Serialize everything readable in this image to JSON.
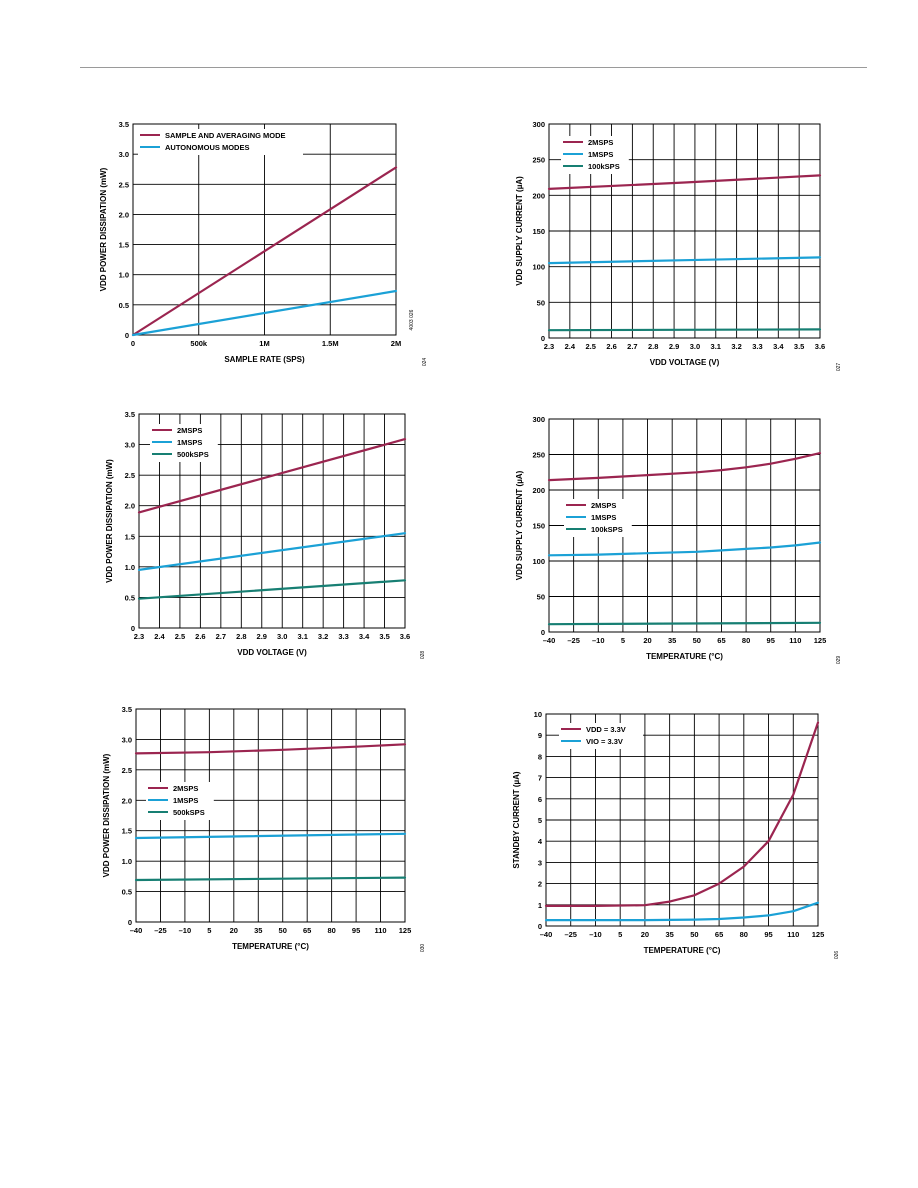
{
  "colors": {
    "maroon": "#9b2550",
    "cyan": "#1ba1d6",
    "teal": "#177f73",
    "grid": "#000000"
  },
  "chart_data": [
    {
      "type": "line",
      "xlabel": "SAMPLE RATE (SPS)",
      "ylabel": "VDD POWER DISSIPATION (mW)",
      "xticks": [
        0,
        500000,
        1000000,
        1500000,
        2000000
      ],
      "xticklabels": [
        "0",
        "500k",
        "1M",
        "1.5M",
        "2M"
      ],
      "yticks": [
        0,
        0.5,
        1.0,
        1.5,
        2.0,
        2.5,
        3.0,
        3.5
      ],
      "yticklabels": [
        "0",
        "0.5",
        "1.0",
        "1.5",
        "2.0",
        "2.5",
        "3.0",
        "3.5"
      ],
      "xlim": [
        0,
        2000000
      ],
      "ylim": [
        0,
        3.5
      ],
      "legend": "top-left",
      "series": [
        {
          "name": "SAMPLE AND AVERAGING MODE",
          "color": "#9b2550",
          "x": [
            0,
            2000000
          ],
          "y": [
            0,
            2.78
          ]
        },
        {
          "name": "AUTONOMOUS MODES",
          "color": "#1ba1d6",
          "x": [
            0,
            2000000
          ],
          "y": [
            0,
            0.73
          ]
        }
      ],
      "code": "024",
      "annotation": "4003 026"
    },
    {
      "type": "line",
      "xlabel": "VDD VOLTAGE (V)",
      "ylabel": "VDD SUPPLY CURRENT (µA)",
      "xticks": [
        2.3,
        2.4,
        2.5,
        2.6,
        2.7,
        2.8,
        2.9,
        3.0,
        3.1,
        3.2,
        3.3,
        3.4,
        3.5,
        3.6
      ],
      "xticklabels": [
        "2.3",
        "2.4",
        "2.5",
        "2.6",
        "2.7",
        "2.8",
        "2.9",
        "3.0",
        "3.1",
        "3.2",
        "3.3",
        "3.4",
        "3.5",
        "3.6"
      ],
      "yticks": [
        0,
        50,
        100,
        150,
        200,
        250,
        300
      ],
      "yticklabels": [
        "0",
        "50",
        "100",
        "150",
        "200",
        "250",
        "300"
      ],
      "xlim": [
        2.3,
        3.6
      ],
      "ylim": [
        0,
        300
      ],
      "legend": "top-left",
      "series": [
        {
          "name": "2MSPS",
          "color": "#9b2550",
          "x": [
            2.3,
            2.95,
            3.6
          ],
          "y": [
            209,
            218,
            228
          ]
        },
        {
          "name": "1MSPS",
          "color": "#1ba1d6",
          "x": [
            2.3,
            2.95,
            3.6
          ],
          "y": [
            105,
            109,
            113
          ]
        },
        {
          "name": "100kSPS",
          "color": "#177f73",
          "x": [
            2.3,
            3.6
          ],
          "y": [
            11,
            12
          ]
        }
      ],
      "code": "027"
    },
    {
      "type": "line",
      "xlabel": "VDD VOLTAGE (V)",
      "ylabel": "VDD POWER DISSIPATION (mW)",
      "xticks": [
        2.3,
        2.4,
        2.5,
        2.6,
        2.7,
        2.8,
        2.9,
        3.0,
        3.1,
        3.2,
        3.3,
        3.4,
        3.5,
        3.6
      ],
      "xticklabels": [
        "2.3",
        "2.4",
        "2.5",
        "2.6",
        "2.7",
        "2.8",
        "2.9",
        "3.0",
        "3.1",
        "3.2",
        "3.3",
        "3.4",
        "3.5",
        "3.6"
      ],
      "yticks": [
        0,
        0.5,
        1.0,
        1.5,
        2.0,
        2.5,
        3.0,
        3.5
      ],
      "yticklabels": [
        "0",
        "0.5",
        "1.0",
        "1.5",
        "2.0",
        "2.5",
        "3.0",
        "3.5"
      ],
      "xlim": [
        2.3,
        3.6
      ],
      "ylim": [
        0,
        3.5
      ],
      "legend": "top-left",
      "series": [
        {
          "name": "2MSPS",
          "color": "#9b2550",
          "x": [
            2.3,
            3.6
          ],
          "y": [
            1.89,
            3.09
          ]
        },
        {
          "name": "1MSPS",
          "color": "#1ba1d6",
          "x": [
            2.3,
            3.6
          ],
          "y": [
            0.95,
            1.55
          ]
        },
        {
          "name": "500kSPS",
          "color": "#177f73",
          "x": [
            2.3,
            3.6
          ],
          "y": [
            0.48,
            0.78
          ]
        }
      ],
      "code": "028"
    },
    {
      "type": "line",
      "xlabel": "TEMPERATURE (°C)",
      "ylabel": "VDD SUPPLY CURRENT (µA)",
      "xticks": [
        -40,
        -25,
        -10,
        5,
        20,
        35,
        50,
        65,
        80,
        95,
        110,
        125
      ],
      "xticklabels": [
        "–40",
        "–25",
        "–10",
        "5",
        "20",
        "35",
        "50",
        "65",
        "80",
        "95",
        "110",
        "125"
      ],
      "yticks": [
        0,
        50,
        100,
        150,
        200,
        250,
        300
      ],
      "yticklabels": [
        "0",
        "50",
        "100",
        "150",
        "200",
        "250",
        "300"
      ],
      "xlim": [
        -40,
        125
      ],
      "ylim": [
        0,
        300
      ],
      "legend": "middle-left",
      "series": [
        {
          "name": "2MSPS",
          "color": "#9b2550",
          "x": [
            -40,
            -10,
            20,
            50,
            65,
            80,
            95,
            110,
            125
          ],
          "y": [
            214,
            217,
            221,
            225,
            228,
            232,
            237,
            244,
            252
          ]
        },
        {
          "name": "1MSPS",
          "color": "#1ba1d6",
          "x": [
            -40,
            -10,
            20,
            50,
            65,
            80,
            95,
            110,
            125
          ],
          "y": [
            108,
            109,
            111,
            113,
            115,
            117,
            119,
            122,
            126
          ]
        },
        {
          "name": "100kSPS",
          "color": "#177f73",
          "x": [
            -40,
            125
          ],
          "y": [
            11,
            13
          ]
        }
      ],
      "code": "029"
    },
    {
      "type": "line",
      "xlabel": "TEMPERATURE (°C)",
      "ylabel": "VDD POWER DISSIPATION (mW)",
      "xticks": [
        -40,
        -25,
        -10,
        5,
        20,
        35,
        50,
        65,
        80,
        95,
        110,
        125
      ],
      "xticklabels": [
        "–40",
        "–25",
        "–10",
        "5",
        "20",
        "35",
        "50",
        "65",
        "80",
        "95",
        "110",
        "125"
      ],
      "yticks": [
        0,
        0.5,
        1.0,
        1.5,
        2.0,
        2.5,
        3.0,
        3.5
      ],
      "yticklabels": [
        "0",
        "0.5",
        "1.0",
        "1.5",
        "2.0",
        "2.5",
        "3.0",
        "3.5"
      ],
      "xlim": [
        -40,
        125
      ],
      "ylim": [
        0,
        3.5
      ],
      "legend": "middle-left",
      "series": [
        {
          "name": "2MSPS",
          "color": "#9b2550",
          "x": [
            -40,
            5,
            50,
            95,
            125
          ],
          "y": [
            2.77,
            2.79,
            2.83,
            2.88,
            2.92
          ]
        },
        {
          "name": "1MSPS",
          "color": "#1ba1d6",
          "x": [
            -40,
            125
          ],
          "y": [
            1.38,
            1.45
          ]
        },
        {
          "name": "500kSPS",
          "color": "#177f73",
          "x": [
            -40,
            125
          ],
          "y": [
            0.69,
            0.73
          ]
        }
      ],
      "code": "030"
    },
    {
      "type": "line",
      "xlabel": "TEMPERATURE (°C)",
      "ylabel": "STANDBY CURRENT (µA)",
      "xticks": [
        -40,
        -25,
        -10,
        5,
        20,
        35,
        50,
        65,
        80,
        95,
        110,
        125
      ],
      "xticklabels": [
        "–40",
        "–25",
        "–10",
        "5",
        "20",
        "35",
        "50",
        "65",
        "80",
        "95",
        "110",
        "125"
      ],
      "yticks": [
        0,
        1,
        2,
        3,
        4,
        5,
        6,
        7,
        8,
        9,
        10
      ],
      "yticklabels": [
        "0",
        "1",
        "2",
        "3",
        "4",
        "5",
        "6",
        "7",
        "8",
        "9",
        "10"
      ],
      "xlim": [
        -40,
        125
      ],
      "ylim": [
        0,
        10
      ],
      "legend": "top-left",
      "series": [
        {
          "name": "VDD = 3.3V",
          "color": "#9b2550",
          "x": [
            -40,
            -10,
            20,
            35,
            50,
            65,
            80,
            95,
            110,
            125
          ],
          "y": [
            0.95,
            0.95,
            0.98,
            1.15,
            1.45,
            2.0,
            2.8,
            4.0,
            6.2,
            9.6
          ]
        },
        {
          "name": "VIO = 3.3V",
          "color": "#1ba1d6",
          "x": [
            -40,
            20,
            50,
            65,
            80,
            95,
            110,
            125
          ],
          "y": [
            0.28,
            0.28,
            0.3,
            0.33,
            0.4,
            0.5,
            0.7,
            1.1
          ]
        }
      ],
      "code": "026"
    }
  ]
}
